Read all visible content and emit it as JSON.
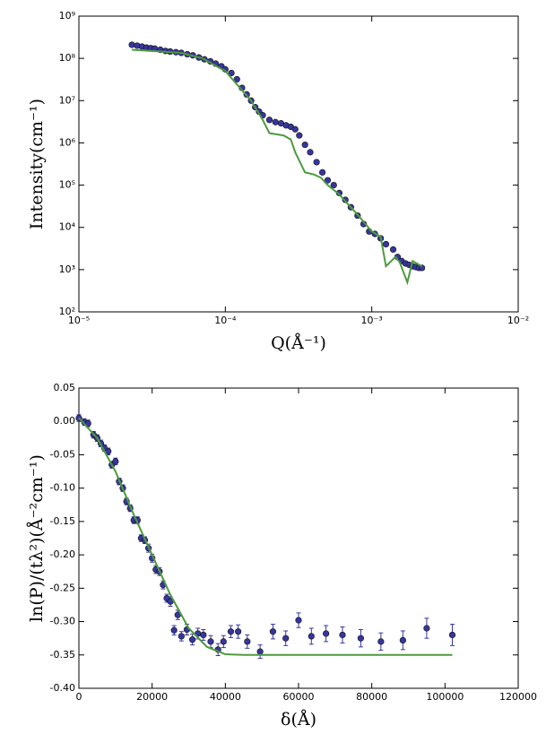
{
  "chart_data": [
    {
      "type": "scatter",
      "xlog": true,
      "ylog": true,
      "xlabel": "Q(Å⁻¹)",
      "ylabel": "Intensity(cm⁻¹)",
      "xlim": [
        1e-05,
        0.01
      ],
      "ylim": [
        100,
        1000000000
      ],
      "xticks": [
        {
          "value": 1e-05,
          "label": "10⁻⁵"
        },
        {
          "value": 0.0001,
          "label": "10⁻⁴"
        },
        {
          "value": 0.001,
          "label": "10⁻³"
        },
        {
          "value": 0.01,
          "label": "10⁻²"
        }
      ],
      "yticks": [
        {
          "value": 100,
          "label": "10²"
        },
        {
          "value": 1000,
          "label": "10³"
        },
        {
          "value": 10000,
          "label": "10⁴"
        },
        {
          "value": 100000,
          "label": "10⁵"
        },
        {
          "value": 1000000,
          "label": "10⁶"
        },
        {
          "value": 10000000,
          "label": "10⁷"
        },
        {
          "value": 100000000,
          "label": "10⁸"
        },
        {
          "value": 1000000000,
          "label": "10⁹"
        }
      ],
      "series": [
        {
          "type": "scatter",
          "color": "#3636a0",
          "x": [
            2.3e-05,
            2.5e-05,
            2.7e-05,
            2.9e-05,
            3.1e-05,
            3.3e-05,
            3.6e-05,
            3.9e-05,
            4.2e-05,
            4.6e-05,
            5e-05,
            5.5e-05,
            6e-05,
            6.6e-05,
            7.2e-05,
            7.9e-05,
            8.6e-05,
            9.4e-05,
            0.0001,
            0.00011,
            0.00012,
            0.00013,
            0.00014,
            0.00015,
            0.00016,
            0.00017,
            0.00018,
            0.0002,
            0.00022,
            0.00024,
            0.00026,
            0.00028,
            0.0003,
            0.00032,
            0.00035,
            0.00038,
            0.00042,
            0.00046,
            0.0005,
            0.00055,
            0.0006,
            0.00066,
            0.00072,
            0.0008,
            0.00088,
            0.00096,
            0.00105,
            0.00115,
            0.00125,
            0.0014,
            0.0015,
            0.0016,
            0.0017,
            0.0018,
            0.0019,
            0.002,
            0.0021,
            0.0022
          ],
          "values": [
            210000000,
            200000000,
            190000000,
            180000000,
            175000000,
            170000000,
            160000000,
            150000000,
            145000000,
            140000000,
            135000000,
            125000000,
            118000000,
            105000000,
            95000000,
            85000000,
            75000000,
            65000000,
            55000000,
            45000000,
            32000000,
            20000000,
            14000000,
            10000000,
            7000000,
            5500000,
            4500000,
            3500000,
            3100000,
            2900000,
            2600000,
            2400000,
            2100000,
            1500000,
            900000,
            600000,
            350000,
            200000,
            130000,
            100000,
            65000,
            45000,
            30000,
            19000,
            12000,
            8000,
            7000,
            5500,
            4000,
            3000,
            2000,
            1600,
            1400,
            1300,
            1200,
            1150,
            1100,
            1100
          ]
        },
        {
          "type": "line",
          "color": "#4e9a3e",
          "x": [
            2.3e-05,
            5e-05,
            7e-05,
            0.0001,
            0.00015,
            0.00018,
            0.0002,
            0.00025,
            0.00028,
            0.0003,
            0.00035,
            0.0004,
            0.00045,
            0.0005,
            0.0006,
            0.0008,
            0.001,
            0.00115,
            0.00125,
            0.00145,
            0.00155,
            0.00175,
            0.0019,
            0.0022
          ],
          "values": [
            160000000,
            135000000,
            100000000,
            50000000,
            10000000,
            3500000,
            1700000,
            1500000,
            1200000,
            600000,
            200000,
            180000,
            150000,
            100000,
            60000,
            20000,
            8000,
            6000,
            1200,
            2000,
            1500,
            500,
            1600,
            1200
          ]
        }
      ]
    },
    {
      "type": "scatter",
      "xlog": false,
      "ylog": false,
      "xlabel": "δ(Å)",
      "ylabel": "ln(P)/(tλ²)(Å⁻²cm⁻¹)",
      "xlim": [
        0,
        120000
      ],
      "ylim": [
        -0.4,
        0.05
      ],
      "xticks": [
        0,
        20000,
        40000,
        60000,
        80000,
        100000,
        120000
      ],
      "yticks": [
        0.05,
        {
          "value": 0,
          "label": "0.00"
        },
        -0.05,
        {
          "value": -0.1,
          "label": "-0.10"
        },
        -0.15,
        {
          "value": -0.2,
          "label": "-0.20"
        },
        -0.25,
        {
          "value": -0.3,
          "label": "-0.30"
        },
        -0.35,
        {
          "value": -0.4,
          "label": "-0.40"
        }
      ],
      "series": [
        {
          "type": "scatter",
          "color": "#3636a0",
          "x": [
            0,
            1500,
            2500,
            4000,
            5000,
            6000,
            7000,
            8000,
            9000,
            10000,
            11000,
            12000,
            13000,
            14000,
            15000,
            16000,
            17000,
            18000,
            19000,
            20000,
            21000,
            22000,
            23000,
            24000,
            25000,
            26000,
            27000,
            28000,
            29500,
            31000,
            32500,
            34000,
            36000,
            38000,
            39500,
            41500,
            43500,
            46000,
            49500,
            53000,
            56500,
            60000,
            63500,
            67500,
            72000,
            77000,
            82500,
            88500,
            95000,
            102000
          ],
          "values": [
            0.005,
            -0.001,
            -0.003,
            -0.02,
            -0.025,
            -0.033,
            -0.04,
            -0.045,
            -0.065,
            -0.06,
            -0.09,
            -0.1,
            -0.12,
            -0.13,
            -0.148,
            -0.148,
            -0.175,
            -0.178,
            -0.19,
            -0.205,
            -0.222,
            -0.225,
            -0.245,
            -0.265,
            -0.27,
            -0.313,
            -0.29,
            -0.322,
            -0.312,
            -0.327,
            -0.318,
            -0.32,
            -0.33,
            -0.342,
            -0.33,
            -0.315,
            -0.315,
            -0.33,
            -0.345,
            -0.315,
            -0.325,
            -0.298,
            -0.322,
            -0.318,
            -0.32,
            -0.325,
            -0.33,
            -0.328,
            -0.31,
            -0.32
          ],
          "errors": [
            0.005,
            0.005,
            0.005,
            0.005,
            0.005,
            0.005,
            0.005,
            0.005,
            0.005,
            0.005,
            0.005,
            0.005,
            0.005,
            0.005,
            0.005,
            0.005,
            0.005,
            0.005,
            0.006,
            0.006,
            0.006,
            0.006,
            0.006,
            0.006,
            0.007,
            0.007,
            0.007,
            0.007,
            0.008,
            0.008,
            0.008,
            0.008,
            0.009,
            0.009,
            0.009,
            0.009,
            0.01,
            0.01,
            0.01,
            0.011,
            0.011,
            0.011,
            0.012,
            0.012,
            0.012,
            0.013,
            0.013,
            0.014,
            0.015,
            0.016
          ]
        },
        {
          "type": "line",
          "color": "#4e9a3e",
          "x": [
            0,
            5000,
            10000,
            15000,
            20000,
            25000,
            30000,
            35000,
            40000,
            45000,
            102000
          ],
          "values": [
            0.005,
            -0.025,
            -0.075,
            -0.14,
            -0.2,
            -0.26,
            -0.31,
            -0.338,
            -0.349,
            -0.35,
            -0.35
          ]
        }
      ]
    }
  ]
}
